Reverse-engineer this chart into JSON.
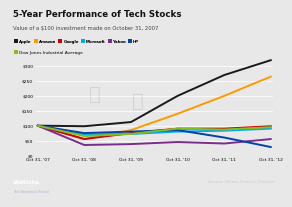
{
  "title": "5-Year Performance of Tech Stocks",
  "subtitle": "Value of a $100 investment made on October 31, 2007",
  "x_labels": [
    "Oct 31, '07",
    "Oct 31, '08",
    "Oct 31, '09",
    "Oct 31, '10",
    "Oct 31, '11",
    "Oct 31, '12"
  ],
  "ylim": [
    0,
    330
  ],
  "yticks": [
    0,
    50,
    100,
    150,
    200,
    250,
    300
  ],
  "ytick_labels": [
    "$0",
    "$50",
    "$100",
    "$150",
    "$200",
    "$250",
    "$300"
  ],
  "series": [
    {
      "name": "Apple",
      "color": "#1a1a1a",
      "values": [
        100,
        98,
        112,
        200,
        270,
        320
      ],
      "lw": 1.4,
      "ls": "-"
    },
    {
      "name": "Amazon",
      "color": "#ff9900",
      "values": [
        100,
        55,
        85,
        140,
        200,
        265
      ],
      "lw": 1.4,
      "ls": "-"
    },
    {
      "name": "Google",
      "color": "#cc0000",
      "values": [
        100,
        55,
        75,
        90,
        90,
        98
      ],
      "lw": 1.4,
      "ls": "-"
    },
    {
      "name": "Microsoft",
      "color": "#00aaee",
      "values": [
        100,
        70,
        72,
        80,
        83,
        90
      ],
      "lw": 1.4,
      "ls": "-"
    },
    {
      "name": "Yahoo",
      "color": "#7b2d8b",
      "values": [
        100,
        35,
        38,
        45,
        40,
        55
      ],
      "lw": 1.4,
      "ls": "-"
    },
    {
      "name": "HP",
      "color": "#0044aa",
      "values": [
        100,
        75,
        80,
        85,
        60,
        28
      ],
      "lw": 1.4,
      "ls": "-"
    },
    {
      "name": "Dow Jones Industrial Average",
      "color": "#88bb22",
      "values": [
        100,
        65,
        72,
        90,
        87,
        95
      ],
      "lw": 1.4,
      "ls": "-"
    }
  ],
  "bg_color": "#e8e8e8",
  "plot_bg": "#e8e8e8",
  "footer_bg": "#1a1a2e",
  "legend_row1": [
    "Apple",
    "Amazon",
    "Google",
    "Microsoft",
    "Yahoo",
    "HP"
  ],
  "legend_row2": [
    "Dow Jones Industrial Average"
  ],
  "source_text": "Source: Yahoo! Finance, Statista"
}
